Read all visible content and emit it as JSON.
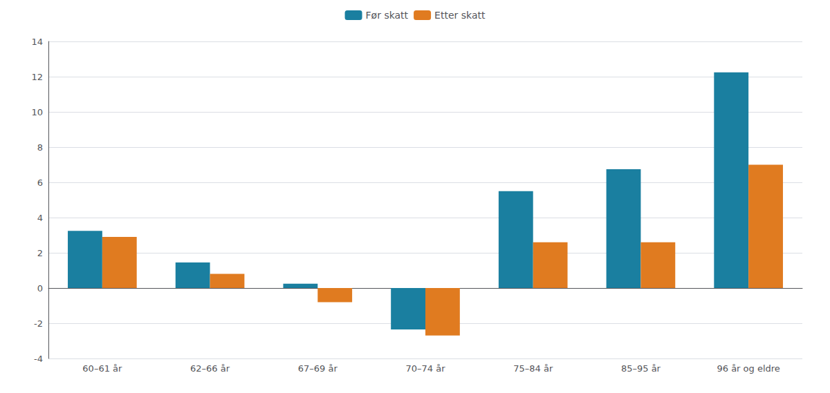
{
  "chart_data": {
    "type": "bar",
    "categories": [
      "60–61 år",
      "62–66 år",
      "67–69 år",
      "70–74 år",
      "75–84 år",
      "85–95 år",
      "96 år og eldre"
    ],
    "series": [
      {
        "name": "Før skatt",
        "color": "#1a7fa0",
        "values": [
          3.25,
          1.45,
          0.25,
          -2.35,
          5.5,
          6.75,
          12.25
        ]
      },
      {
        "name": "Etter skatt",
        "color": "#e07b20",
        "values": [
          2.9,
          0.8,
          -0.8,
          -2.7,
          2.6,
          2.6,
          7.0
        ]
      }
    ],
    "ylim": [
      -4,
      14
    ],
    "yticks": [
      -4,
      -2,
      0,
      2,
      4,
      6,
      8,
      10,
      12,
      14
    ],
    "grid": true,
    "legend": "top"
  }
}
